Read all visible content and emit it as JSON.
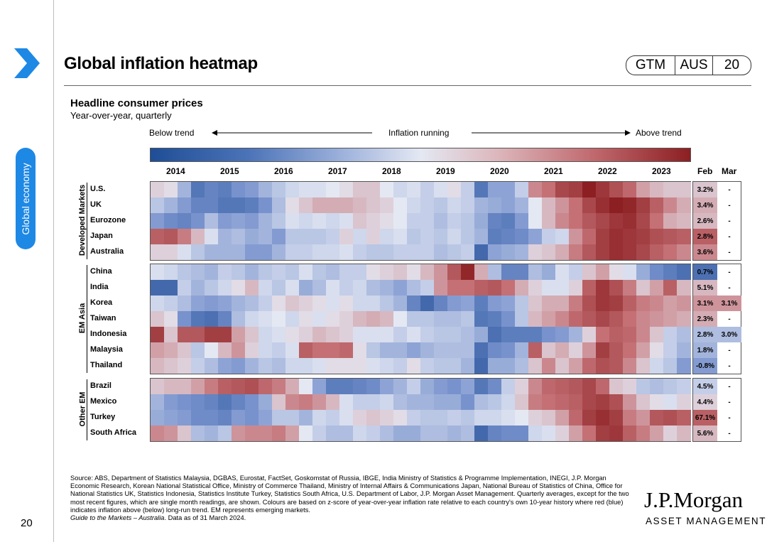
{
  "header": {
    "title": "Global inflation heatmap",
    "badge": [
      "GTM",
      "AUS",
      "20"
    ]
  },
  "sidebar": {
    "section": "Global economy",
    "page_number": "20"
  },
  "colors": {
    "accent": "#1e88e5",
    "low": "#1f4e96",
    "mid": "#e4e8f3",
    "high": "#8c1f22"
  },
  "legend": {
    "below": "Below trend",
    "middle": "Inflation running",
    "above": "Above trend"
  },
  "columns": {
    "feb": "Feb",
    "mar": "Mar"
  },
  "footer": {
    "source": "Source: ABS, Department of Statistics Malaysia, DGBAS, Eurostat, FactSet, Goskomstat of Russia, IBGE, India Ministry of Statistics & Programme Implementation, INEGI, J.P. Morgan Economic Research, Korean National Statistical Office, Ministry of Commerce Thailand, Ministry of Internal Affairs & Communications Japan, National Bureau of Statistics of China, Office for National Statistics UK, Statistics Indonesia, Statistics Institute Turkey, Statistics South Africa, U.S. Department of Labor, J.P. Morgan Asset Management. Quarterly averages, except for the two most recent figures, which are single month readings, are shown. Colours are based on z-score of year-over-year inflation rate relative to each country's own 10-year history where red (blue) indicates inflation above (below) long-run trend. EM represents emerging markets.",
    "guide": "Guide to the Markets – Australia",
    "date": ". Data as of 31 March 2024.",
    "logo_main": "J.P.Morgan",
    "logo_sub": "ASSET MANAGEMENT"
  },
  "chart_data": {
    "type": "heatmap",
    "title": "Headline consumer prices",
    "subtitle": "Year-over-year, quarterly",
    "x_tick_labels": [
      "2014",
      "2015",
      "2016",
      "2017",
      "2018",
      "2019",
      "2020",
      "2021",
      "2022",
      "2023"
    ],
    "periods_per_year": 4,
    "scale": "z-score, -2 (below trend) to +2 (above trend)",
    "groups": [
      {
        "name": "Developed Markets",
        "rows": [
          {
            "country": "U.S.",
            "feb": "3.2%",
            "mar": "-",
            "z": [
              0.2,
              0.1,
              -0.6,
              -1.4,
              -1.2,
              -1.3,
              -1.0,
              -0.9,
              -0.6,
              -0.4,
              -0.2,
              -0.1,
              -0.1,
              0,
              0.1,
              0.3,
              0.3,
              0,
              -0.2,
              -0.1,
              -0.3,
              -0.1,
              0.1,
              -0.3,
              -1.4,
              -0.8,
              -0.8,
              -0.3,
              0.8,
              1.0,
              1.5,
              1.6,
              2.0,
              1.7,
              1.4,
              1.1,
              0.6,
              0.4,
              0.3,
              0.3
            ]
          },
          {
            "country": "UK",
            "feb": "3.4%",
            "mar": "-",
            "z": [
              -0.4,
              -0.6,
              -0.9,
              -1.2,
              -1.2,
              -1.4,
              -1.4,
              -1.3,
              -1.0,
              -0.5,
              0.1,
              0.3,
              0.5,
              0.5,
              0.5,
              0.4,
              0.3,
              0.2,
              0,
              -0.2,
              -0.3,
              -0.4,
              -0.2,
              -0.3,
              -0.6,
              -0.7,
              -0.8,
              -0.6,
              0.0,
              0.4,
              0.7,
              1.0,
              1.5,
              1.8,
              2.0,
              1.9,
              1.6,
              1.2,
              0.8,
              0.5
            ]
          },
          {
            "country": "Eurozone",
            "feb": "2.6%",
            "mar": "-",
            "z": [
              -0.9,
              -1.1,
              -1.2,
              -1.0,
              -0.5,
              -0.9,
              -0.8,
              -0.9,
              -0.6,
              -0.4,
              -0.1,
              -0.2,
              -0.1,
              -0.2,
              -0.1,
              0.3,
              0.2,
              0.1,
              0,
              -0.3,
              -0.3,
              -0.5,
              -0.3,
              -0.4,
              -0.7,
              -1.2,
              -1.3,
              -0.9,
              0.0,
              0.4,
              0.8,
              1.0,
              1.3,
              1.5,
              1.7,
              1.8,
              1.5,
              1.0,
              0.5,
              0.4
            ]
          },
          {
            "country": "Japan",
            "feb": "2.8%",
            "mar": "-",
            "z": [
              1.2,
              1.3,
              0.9,
              0.4,
              -0.1,
              -0.6,
              -0.5,
              -0.7,
              -0.6,
              -0.9,
              -0.4,
              -0.4,
              -0.4,
              -0.3,
              0.2,
              -0.2,
              0.2,
              -0.2,
              -0.1,
              -0.4,
              -0.3,
              -0.4,
              -0.2,
              -0.4,
              -0.6,
              -1.3,
              -1.2,
              -1.1,
              -0.8,
              -0.3,
              -0.2,
              0.7,
              1.1,
              1.6,
              1.8,
              1.7,
              1.6,
              1.4,
              1.3,
              1.2
            ]
          },
          {
            "country": "Australia",
            "feb": "3.6%",
            "mar": "-",
            "z": [
              0.2,
              0.2,
              -0.1,
              -0.4,
              -0.6,
              -0.6,
              -0.6,
              -0.9,
              -0.9,
              -0.6,
              -0.3,
              -0.3,
              -0.2,
              -0.2,
              -0.1,
              -0.3,
              -0.4,
              -0.4,
              -0.3,
              -0.3,
              -0.3,
              -0.5,
              -0.4,
              -0.3,
              -1.6,
              -0.8,
              -0.7,
              -0.6,
              0.2,
              0.3,
              0.5,
              0.9,
              1.3,
              1.6,
              1.8,
              1.7,
              1.5,
              1.2,
              1.0,
              0.8
            ]
          }
        ]
      },
      {
        "name": "EM Asia",
        "rows": [
          {
            "country": "China",
            "feb": "0.7%",
            "mar": "-",
            "z": [
              -0.1,
              -0.2,
              -0.4,
              -0.5,
              -0.6,
              -0.3,
              -0.4,
              -0.6,
              -0.4,
              -0.3,
              -0.4,
              -0.1,
              -0.4,
              -0.5,
              -0.3,
              -0.3,
              0.1,
              0.2,
              0.3,
              0.1,
              0.4,
              0.7,
              1.3,
              1.9,
              0.5,
              -0.5,
              -1.2,
              -1.2,
              -0.5,
              -0.7,
              -0.1,
              -0.3,
              0.3,
              0.6,
              0.1,
              -0.1,
              -0.7,
              -1.1,
              -1.3,
              -1.5
            ]
          },
          {
            "country": "India",
            "feb": "5.1%",
            "mar": "-",
            "z": [
              -1.6,
              -1.6,
              -0.3,
              -0.6,
              -0.4,
              -0.2,
              0.1,
              0.4,
              -0.2,
              -0.4,
              -0.1,
              -0.7,
              -0.5,
              -0.1,
              -0.3,
              -0.2,
              -0.5,
              -0.6,
              -0.8,
              -0.5,
              -0.3,
              0.7,
              1.0,
              1.0,
              1.2,
              1.3,
              1.0,
              0.5,
              0.2,
              -0.1,
              -0.1,
              0.2,
              1.2,
              1.7,
              1.4,
              0.9,
              0.3,
              0.6,
              1.2,
              0.4
            ]
          },
          {
            "country": "Korea",
            "feb": "3.1%",
            "mar": "3.1%",
            "z": [
              -0.2,
              -0.3,
              -0.5,
              -0.8,
              -0.9,
              -0.8,
              -0.6,
              -0.5,
              -0.3,
              0.1,
              0.3,
              0.2,
              0.1,
              -0.1,
              0.1,
              -0.2,
              -0.2,
              -0.4,
              -0.6,
              -1.2,
              -1.6,
              -1.2,
              -0.9,
              -0.8,
              -1.3,
              -0.9,
              -0.8,
              -0.4,
              0.3,
              0.5,
              0.5,
              0.9,
              1.4,
              1.7,
              1.6,
              1.2,
              0.9,
              0.8,
              0.6,
              0.7
            ]
          },
          {
            "country": "Taiwan",
            "feb": "2.3%",
            "mar": "-",
            "z": [
              0.3,
              0.1,
              -1.0,
              -1.4,
              -1.5,
              -1.2,
              -0.5,
              -0.2,
              -0.1,
              0,
              -0.2,
              0.1,
              -0.1,
              0.1,
              0.2,
              0.4,
              0.5,
              0.4,
              0,
              -0.4,
              -0.4,
              -0.5,
              -0.5,
              -0.4,
              -1.4,
              -1.3,
              -1.0,
              -0.4,
              0.4,
              0.6,
              0.8,
              1.1,
              1.3,
              1.5,
              1.3,
              1.0,
              0.8,
              0.7,
              0.6,
              0.5
            ]
          },
          {
            "country": "Indonesia",
            "feb": "2.8%",
            "mar": "3.0%",
            "z": [
              1.6,
              0.3,
              1.3,
              1.3,
              1.6,
              1.6,
              0.6,
              0.3,
              -0.2,
              -0.1,
              0.1,
              0.2,
              0.4,
              0.3,
              0.2,
              -0.1,
              -0.1,
              -0.1,
              -0.3,
              -0.1,
              -0.3,
              -0.4,
              -0.4,
              -0.5,
              -0.7,
              -1.5,
              -1.3,
              -1.3,
              -1.3,
              -1.0,
              -0.9,
              -0.6,
              0.2,
              1.0,
              1.2,
              1.1,
              0.8,
              0.3,
              -0.3,
              -0.5
            ]
          },
          {
            "country": "Malaysia",
            "feb": "1.8%",
            "mar": "-",
            "z": [
              0.6,
              0.5,
              0.3,
              -0.4,
              0,
              0.4,
              0.7,
              0.2,
              -0.2,
              -0.3,
              -0.1,
              1.2,
              1.0,
              1.0,
              1.1,
              0.1,
              -0.4,
              -0.6,
              -0.6,
              -0.8,
              -0.6,
              -0.5,
              -0.5,
              -0.5,
              -1.5,
              -1.1,
              -1.0,
              -0.6,
              1.2,
              0.3,
              0.5,
              0.2,
              0.7,
              1.6,
              1.3,
              1.0,
              0.6,
              0.1,
              -0.3,
              -0.6
            ]
          },
          {
            "country": "Thailand",
            "feb": "-0.8%",
            "mar": "-",
            "z": [
              0.4,
              0.3,
              0.2,
              -0.3,
              -0.5,
              -0.8,
              -0.9,
              -0.6,
              -0.4,
              -0.5,
              -0.2,
              -0.2,
              -0.1,
              0.1,
              0.1,
              0.1,
              -0.1,
              -0.2,
              -0.3,
              0.1,
              -0.3,
              -0.4,
              -0.4,
              -0.6,
              -1.6,
              -0.7,
              -0.7,
              -0.5,
              0.3,
              0.8,
              0.3,
              0.6,
              1.1,
              1.4,
              1.3,
              0.8,
              0.3,
              -0.2,
              -0.4,
              -0.9
            ]
          }
        ]
      },
      {
        "name": "Other EM",
        "rows": [
          {
            "country": "Brazil",
            "feb": "4.5%",
            "mar": "-",
            "z": [
              0.3,
              0.4,
              0.4,
              0.6,
              0.9,
              1.2,
              1.3,
              1.4,
              1.1,
              0.9,
              0.5,
              0.0,
              -0.8,
              -1.3,
              -1.3,
              -1.2,
              -1.1,
              -0.8,
              -0.6,
              -0.3,
              -0.7,
              -0.9,
              -1.0,
              -0.8,
              -1.4,
              -1.1,
              -0.3,
              0.2,
              0.8,
              1.1,
              1.2,
              1.3,
              1.5,
              1.1,
              0.3,
              0.2,
              -0.4,
              -0.5,
              -0.4,
              -0.3
            ]
          },
          {
            "country": "Mexico",
            "feb": "4.4%",
            "mar": "-",
            "z": [
              -0.6,
              -0.9,
              -1.0,
              -1.1,
              -1.2,
              -1.4,
              -1.2,
              -1.0,
              -0.7,
              0.3,
              0.8,
              0.9,
              0.7,
              0.4,
              -0.1,
              -0.3,
              -0.3,
              -0.2,
              -0.5,
              -0.6,
              -0.6,
              -0.7,
              -0.7,
              -1.0,
              -0.5,
              -0.4,
              -0.2,
              0.3,
              0.9,
              1.0,
              1.1,
              1.2,
              1.5,
              1.6,
              1.4,
              0.7,
              0.3,
              0.1,
              -0.1,
              0.2
            ]
          },
          {
            "country": "Turkey",
            "feb": "67.1%",
            "mar": "-",
            "z": [
              -0.7,
              -0.8,
              -0.9,
              -1.1,
              -1.1,
              -1.2,
              -0.9,
              -1.0,
              -0.8,
              -0.4,
              -0.4,
              -0.6,
              -0.2,
              -0.3,
              -0.1,
              0.2,
              0.3,
              0.2,
              0.1,
              -0.3,
              -0.4,
              -0.4,
              -0.3,
              -0.4,
              -0.2,
              -0.2,
              -0.1,
              0.0,
              0.2,
              0.3,
              0.6,
              1.1,
              1.6,
              1.8,
              1.6,
              0.9,
              0.7,
              1.3,
              1.4,
              1.2
            ]
          },
          {
            "country": "South Africa",
            "feb": "5.6%",
            "mar": "-",
            "z": [
              0.8,
              0.7,
              0.3,
              -0.5,
              -0.6,
              -0.4,
              0.7,
              0.8,
              0.8,
              0.9,
              0.6,
              0.0,
              -0.3,
              -0.5,
              -0.5,
              -0.2,
              -0.3,
              -0.5,
              -0.7,
              -0.7,
              -0.5,
              -0.5,
              -0.6,
              -0.5,
              -1.6,
              -1.2,
              -1.1,
              -1.1,
              -0.2,
              -0.1,
              0.2,
              0.6,
              1.0,
              1.6,
              1.7,
              1.2,
              0.9,
              0.6,
              0.2,
              0.4
            ]
          }
        ]
      }
    ]
  }
}
